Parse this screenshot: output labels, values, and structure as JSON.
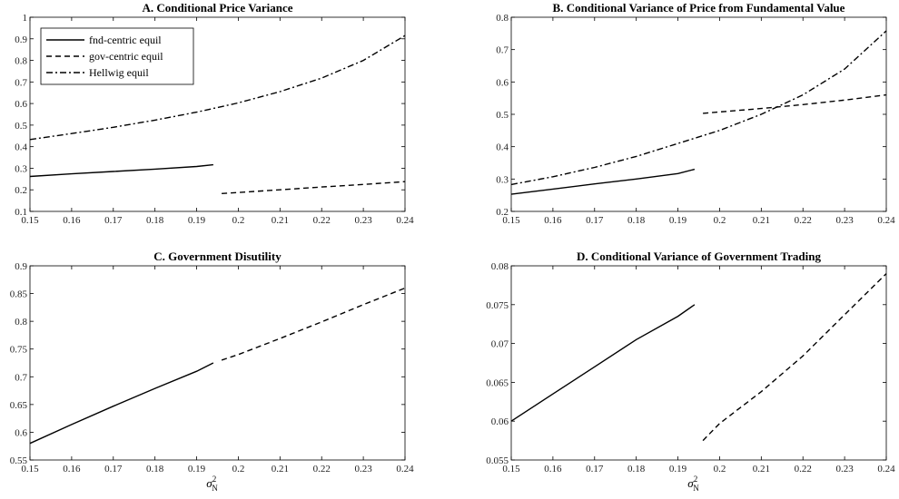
{
  "chart_data": [
    {
      "type": "line",
      "title": "A. Conditional Price Variance",
      "xlabel": "",
      "ylabel": "",
      "xlim": [
        0.15,
        0.24
      ],
      "ylim": [
        0.1,
        1.0
      ],
      "xticks": [
        "0.15",
        "0.16",
        "0.17",
        "0.18",
        "0.19",
        "0.2",
        "0.21",
        "0.22",
        "0.23",
        "0.24"
      ],
      "yticks": [
        "0.1",
        "0.2",
        "0.3",
        "0.4",
        "0.5",
        "0.6",
        "0.7",
        "0.8",
        "0.9",
        "1"
      ],
      "legend": {
        "placement": "top-left",
        "entries": [
          "fnd-centric equil",
          "gov-centric equil",
          "Hellwig equil"
        ]
      },
      "series": [
        {
          "name": "fnd-centric equil",
          "style": "solid",
          "x": [
            0.15,
            0.16,
            0.17,
            0.18,
            0.19,
            0.194
          ],
          "y": [
            0.262,
            0.274,
            0.285,
            0.296,
            0.308,
            0.316
          ]
        },
        {
          "name": "gov-centric equil",
          "style": "dashed",
          "x": [
            0.196,
            0.21,
            0.22,
            0.23,
            0.24
          ],
          "y": [
            0.183,
            0.2,
            0.213,
            0.225,
            0.238
          ]
        },
        {
          "name": "Hellwig equil",
          "style": "dashdot",
          "x": [
            0.15,
            0.16,
            0.17,
            0.18,
            0.19,
            0.2,
            0.21,
            0.22,
            0.23,
            0.24
          ],
          "y": [
            0.433,
            0.461,
            0.49,
            0.523,
            0.56,
            0.603,
            0.655,
            0.718,
            0.8,
            0.915
          ]
        }
      ]
    },
    {
      "type": "line",
      "title": "B. Conditional Variance of Price from Fundamental Value",
      "xlabel": "",
      "ylabel": "",
      "xlim": [
        0.15,
        0.24
      ],
      "ylim": [
        0.2,
        0.8
      ],
      "xticks": [
        "0.15",
        "0.16",
        "0.17",
        "0.18",
        "0.19",
        "0.2",
        "0.21",
        "0.22",
        "0.23",
        "0.24"
      ],
      "yticks": [
        "0.2",
        "0.3",
        "0.4",
        "0.5",
        "0.6",
        "0.7",
        "0.8"
      ],
      "series": [
        {
          "name": "fnd-centric equil",
          "style": "solid",
          "x": [
            0.15,
            0.16,
            0.17,
            0.18,
            0.19,
            0.194
          ],
          "y": [
            0.253,
            0.269,
            0.285,
            0.3,
            0.317,
            0.33
          ]
        },
        {
          "name": "gov-centric equil",
          "style": "dashed",
          "x": [
            0.196,
            0.21,
            0.22,
            0.23,
            0.24
          ],
          "y": [
            0.503,
            0.518,
            0.53,
            0.544,
            0.56
          ]
        },
        {
          "name": "Hellwig equil",
          "style": "dashdot",
          "x": [
            0.15,
            0.16,
            0.17,
            0.18,
            0.19,
            0.2,
            0.21,
            0.22,
            0.23,
            0.24
          ],
          "y": [
            0.283,
            0.307,
            0.336,
            0.37,
            0.41,
            0.45,
            0.5,
            0.56,
            0.64,
            0.758
          ]
        }
      ]
    },
    {
      "type": "line",
      "title": "C. Government Disutility",
      "xlabel": "σ²_N",
      "ylabel": "",
      "xlim": [
        0.15,
        0.24
      ],
      "ylim": [
        0.55,
        0.9
      ],
      "xticks": [
        "0.15",
        "0.16",
        "0.17",
        "0.18",
        "0.19",
        "0.2",
        "0.21",
        "0.22",
        "0.23",
        "0.24"
      ],
      "yticks": [
        "0.55",
        "0.6",
        "0.65",
        "0.7",
        "0.75",
        "0.8",
        "0.85",
        "0.9"
      ],
      "series": [
        {
          "name": "fnd-centric equil",
          "style": "solid",
          "x": [
            0.15,
            0.16,
            0.17,
            0.18,
            0.19,
            0.194
          ],
          "y": [
            0.58,
            0.614,
            0.647,
            0.679,
            0.71,
            0.725
          ]
        },
        {
          "name": "gov-centric equil",
          "style": "dashed",
          "x": [
            0.196,
            0.2,
            0.21,
            0.22,
            0.23,
            0.24
          ],
          "y": [
            0.73,
            0.74,
            0.769,
            0.799,
            0.83,
            0.86
          ]
        }
      ]
    },
    {
      "type": "line",
      "title": "D. Conditional Variance of Government Trading",
      "xlabel": "σ²_N",
      "ylabel": "",
      "xlim": [
        0.15,
        0.24
      ],
      "ylim": [
        0.055,
        0.08
      ],
      "xticks": [
        "0.15",
        "0.16",
        "0.17",
        "0.18",
        "0.19",
        "0.2",
        "0.21",
        "0.22",
        "0.23",
        "0.24"
      ],
      "yticks": [
        "0.055",
        "0.06",
        "0.065",
        "0.07",
        "0.075",
        "0.08"
      ],
      "series": [
        {
          "name": "fnd-centric equil",
          "style": "solid",
          "x": [
            0.15,
            0.16,
            0.17,
            0.18,
            0.19,
            0.194
          ],
          "y": [
            0.06,
            0.0635,
            0.067,
            0.0705,
            0.0735,
            0.075
          ]
        },
        {
          "name": "gov-centric equil",
          "style": "dashed",
          "x": [
            0.196,
            0.2,
            0.21,
            0.22,
            0.23,
            0.24
          ],
          "y": [
            0.0575,
            0.0597,
            0.0638,
            0.0684,
            0.0737,
            0.079
          ]
        }
      ]
    }
  ]
}
